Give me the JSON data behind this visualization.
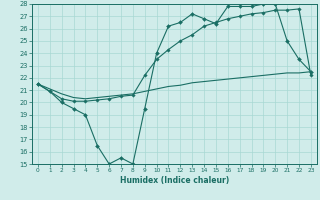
{
  "xlabel": "Humidex (Indice chaleur)",
  "bg_color": "#d0ecea",
  "grid_color": "#a8d8d4",
  "line_color": "#1a6e64",
  "xlim": [
    -0.5,
    23.5
  ],
  "ylim": [
    15,
    28
  ],
  "xticks": [
    0,
    1,
    2,
    3,
    4,
    5,
    6,
    7,
    8,
    9,
    10,
    11,
    12,
    13,
    14,
    15,
    16,
    17,
    18,
    19,
    20,
    21,
    22,
    23
  ],
  "yticks": [
    15,
    16,
    17,
    18,
    19,
    20,
    21,
    22,
    23,
    24,
    25,
    26,
    27,
    28
  ],
  "line1_x": [
    0,
    1,
    2,
    3,
    4,
    5,
    6,
    7,
    8,
    9,
    10,
    11,
    12,
    13,
    14,
    15,
    16,
    17,
    18,
    19,
    20,
    21,
    22,
    23
  ],
  "line1_y": [
    21.5,
    20.9,
    20.0,
    19.5,
    19.0,
    16.5,
    15.0,
    15.5,
    15.0,
    19.5,
    24.0,
    26.2,
    26.5,
    27.2,
    26.8,
    26.4,
    27.8,
    27.8,
    27.8,
    28.0,
    28.0,
    25.0,
    23.5,
    22.5
  ],
  "line2_x": [
    0,
    2,
    3,
    4,
    5,
    6,
    7,
    8,
    9,
    10,
    11,
    12,
    13,
    14,
    15,
    16,
    17,
    18,
    19,
    20,
    21,
    22,
    23
  ],
  "line2_y": [
    21.5,
    20.3,
    20.1,
    20.1,
    20.2,
    20.3,
    20.5,
    20.6,
    22.2,
    23.5,
    24.3,
    25.0,
    25.5,
    26.2,
    26.5,
    26.8,
    27.0,
    27.2,
    27.3,
    27.5,
    27.5,
    27.6,
    22.2
  ],
  "line3_x": [
    0,
    1,
    2,
    3,
    4,
    5,
    6,
    7,
    8,
    9,
    10,
    11,
    12,
    13,
    14,
    15,
    16,
    17,
    18,
    19,
    20,
    21,
    22,
    23
  ],
  "line3_y": [
    21.5,
    21.1,
    20.7,
    20.4,
    20.3,
    20.4,
    20.5,
    20.6,
    20.7,
    20.9,
    21.1,
    21.3,
    21.4,
    21.6,
    21.7,
    21.8,
    21.9,
    22.0,
    22.1,
    22.2,
    22.3,
    22.4,
    22.4,
    22.5
  ]
}
